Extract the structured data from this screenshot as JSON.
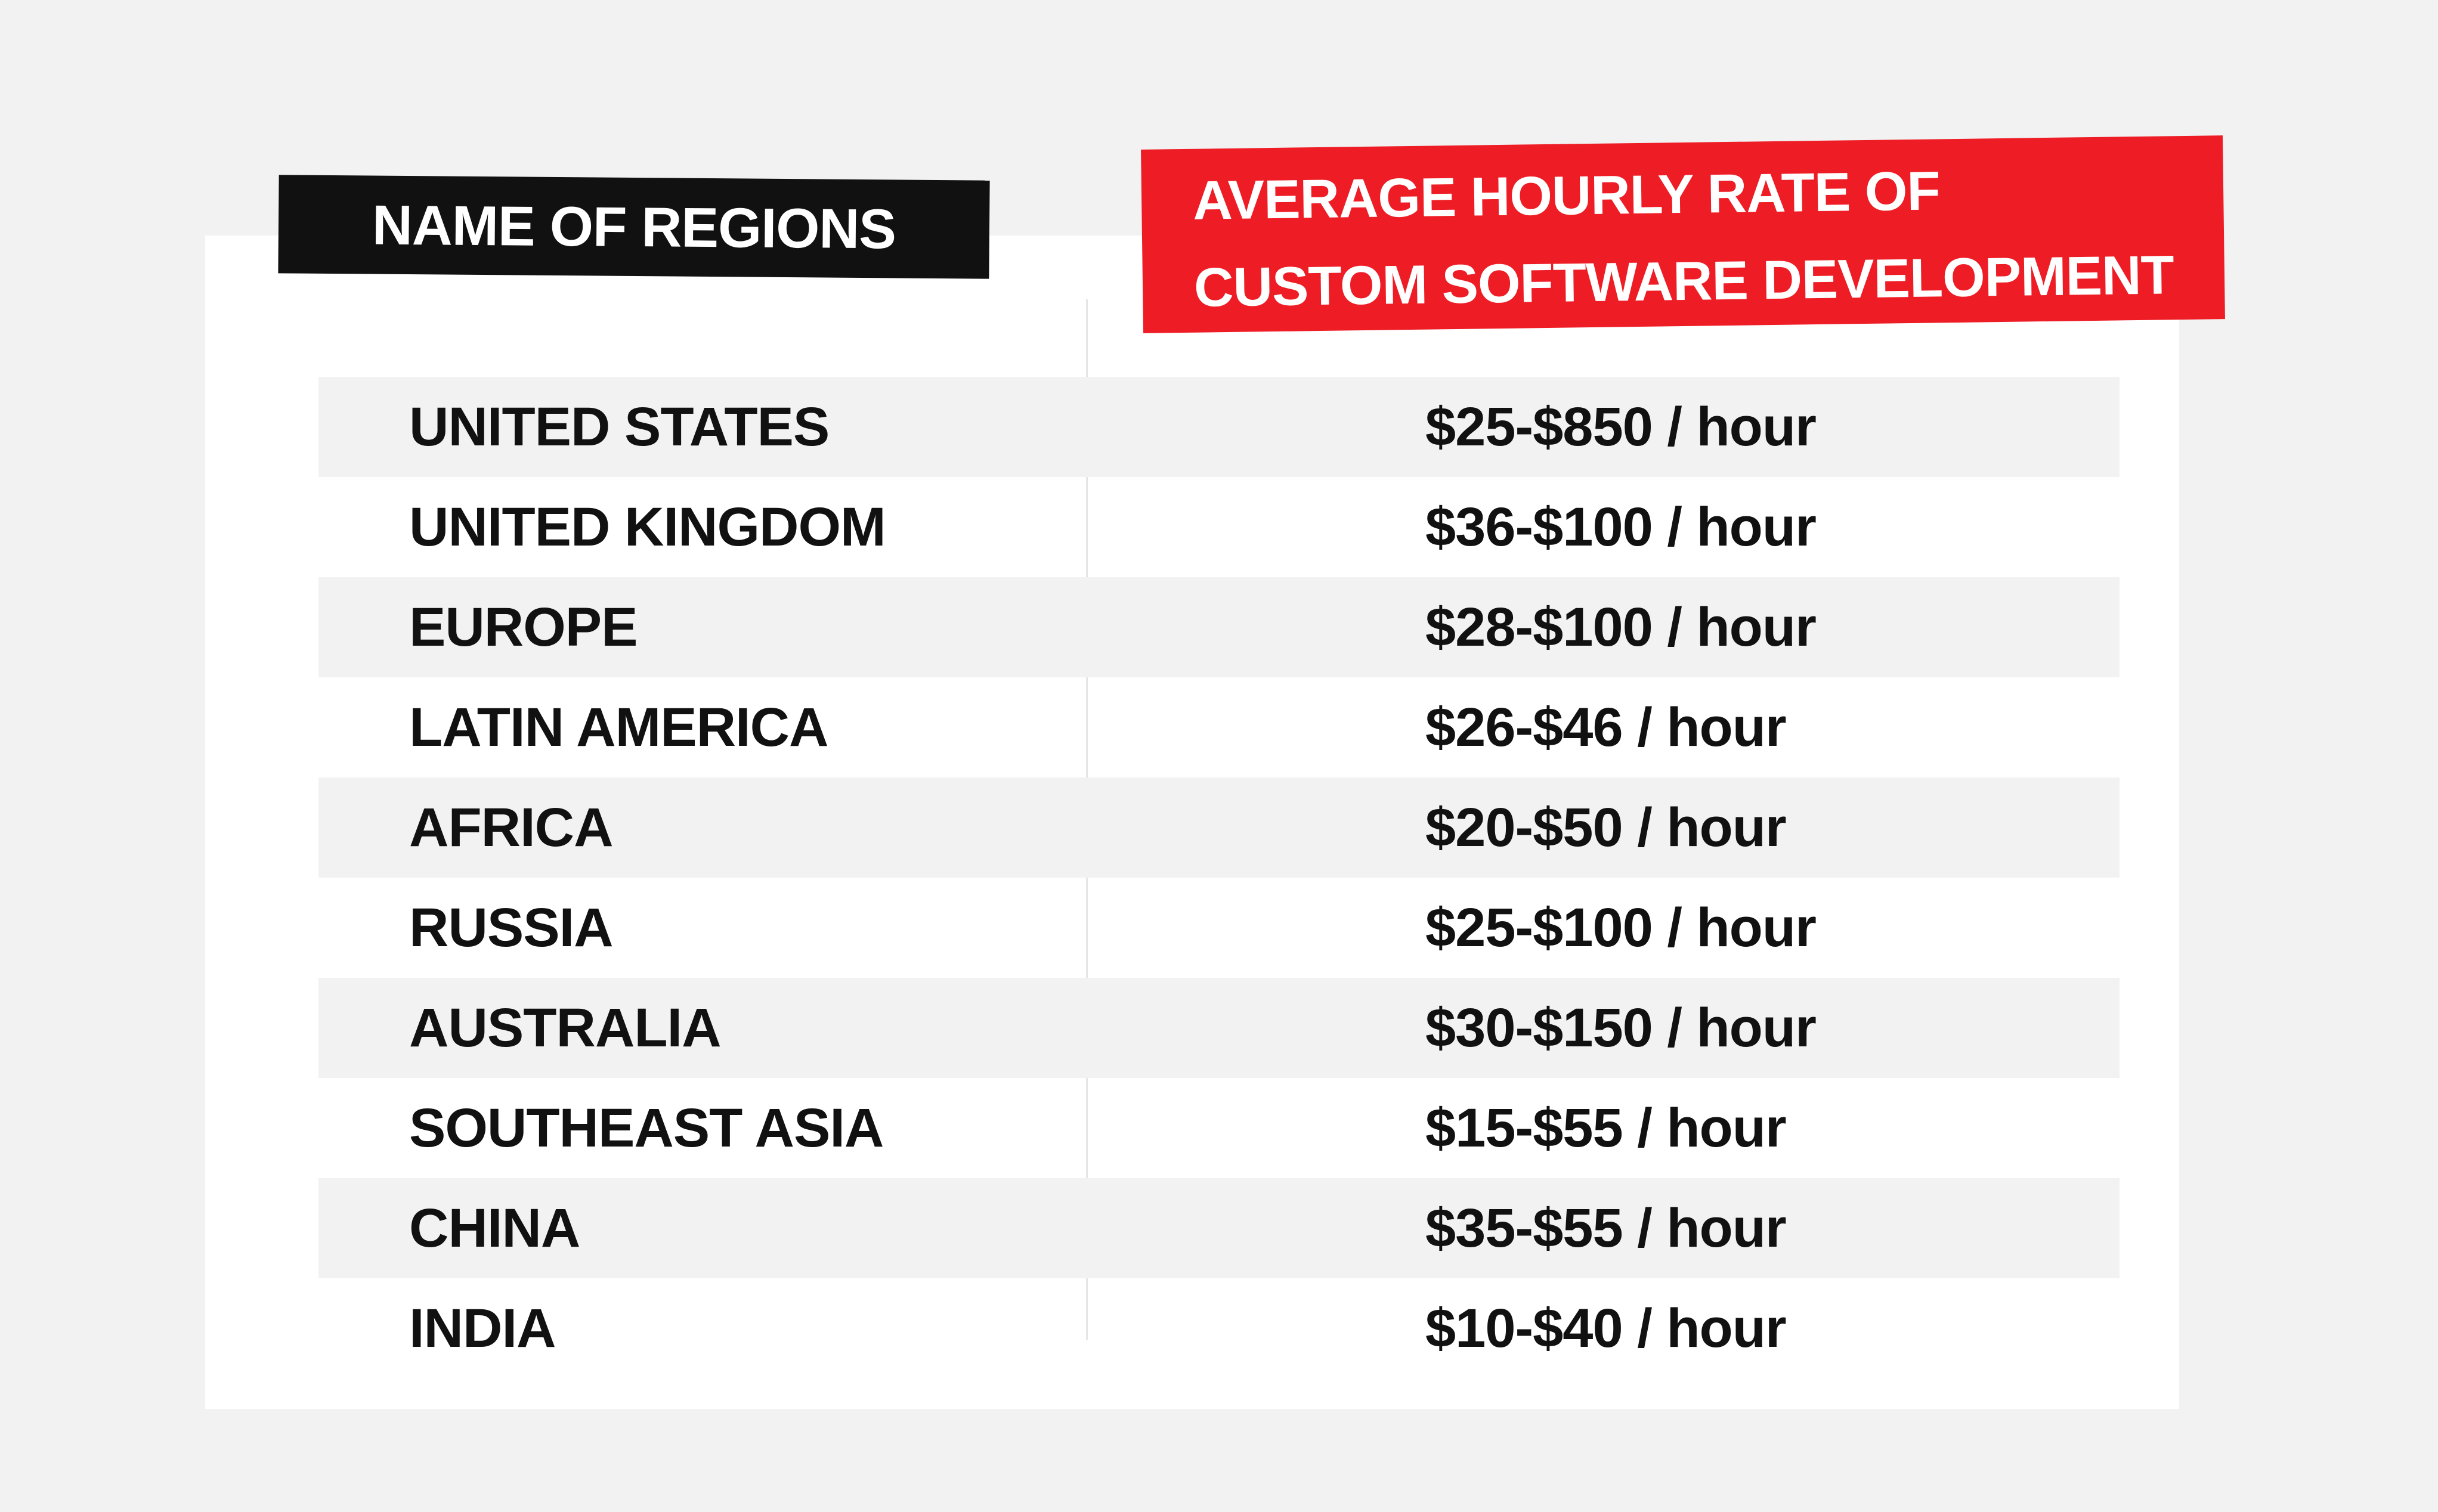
{
  "headers": {
    "regions": "NAME OF REGIONS",
    "rate_line1": "AVERAGE HOURLY RATE OF",
    "rate_line2": "CUSTOM SOFTWARE DEVELOPMENT"
  },
  "colors": {
    "background": "#f2f2f2",
    "card": "#ffffff",
    "header_black": "#111111",
    "header_red": "#ee1c25",
    "row_shade": "#f2f2f2"
  },
  "rows": [
    {
      "region": "UNITED STATES",
      "rate": "$25-$850 / hour"
    },
    {
      "region": "UNITED KINGDOM",
      "rate": "$36-$100 / hour"
    },
    {
      "region": "EUROPE",
      "rate": "$28-$100 / hour"
    },
    {
      "region": "LATIN AMERICA",
      "rate": "$26-$46 / hour"
    },
    {
      "region": "AFRICA",
      "rate": "$20-$50 / hour"
    },
    {
      "region": "RUSSIA",
      "rate": "$25-$100 / hour"
    },
    {
      "region": "AUSTRALIA",
      "rate": "$30-$150 / hour"
    },
    {
      "region": "SOUTHEAST ASIA",
      "rate": "$15-$55 / hour"
    },
    {
      "region": "CHINA",
      "rate": "$35-$55 / hour"
    },
    {
      "region": "INDIA",
      "rate": "$10-$40 / hour"
    }
  ]
}
